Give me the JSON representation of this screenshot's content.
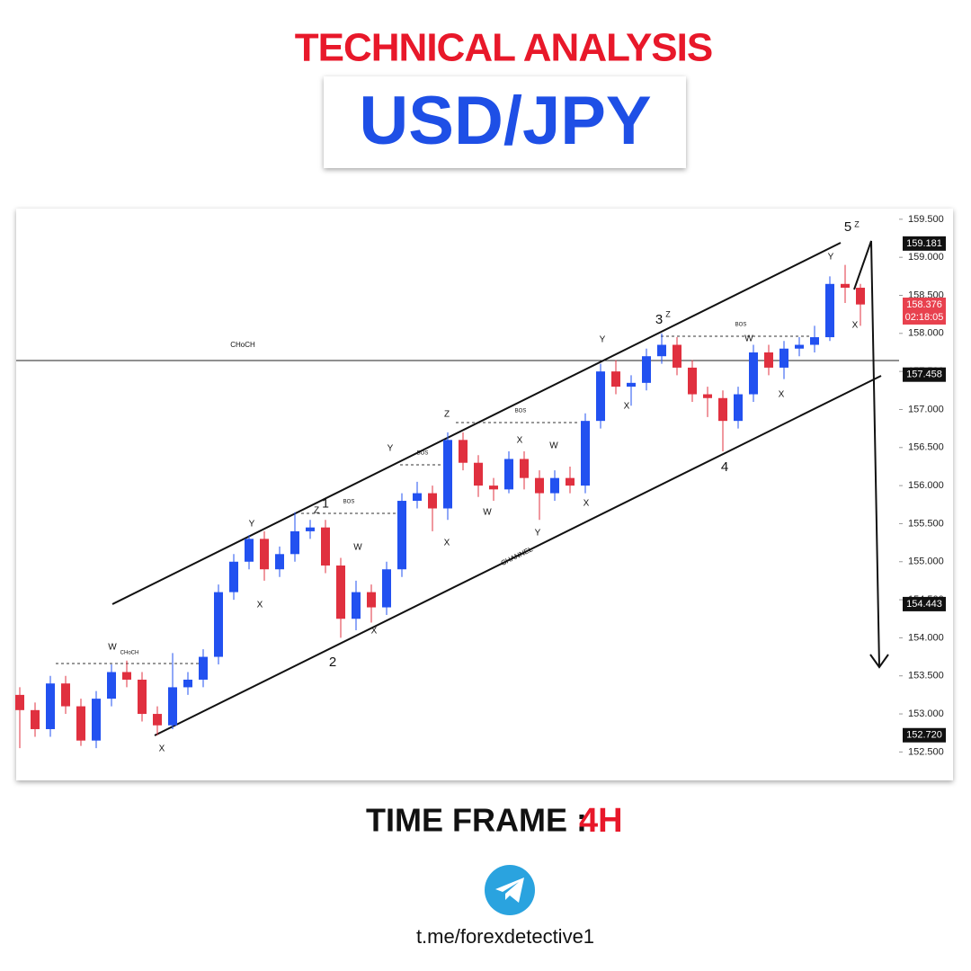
{
  "header": {
    "title": "TECHNICAL ANALYSIS",
    "pair": "USD/JPY"
  },
  "chart_data": {
    "type": "candlestick",
    "up_color": "#2251f0",
    "down_color": "#e0303f",
    "open": [
      153.25,
      153.05,
      152.8,
      153.4,
      153.1,
      152.65,
      153.2,
      153.55,
      153.45,
      153.0,
      152.85,
      153.35,
      153.45,
      153.75,
      154.6,
      155.0,
      155.3,
      154.9,
      155.1,
      155.4,
      155.45,
      154.95,
      154.25,
      154.6,
      154.4,
      154.9,
      155.8,
      155.9,
      155.7,
      156.6,
      156.3,
      156.0,
      155.95,
      156.35,
      156.1,
      155.9,
      156.1,
      156.0,
      156.85,
      157.5,
      157.3,
      157.35,
      157.7,
      157.85,
      157.55,
      157.2,
      157.15,
      156.85,
      157.2,
      157.75,
      157.55,
      157.8,
      157.85,
      157.95,
      158.65,
      158.6
    ],
    "high": [
      153.35,
      153.15,
      153.5,
      153.5,
      153.2,
      153.3,
      153.65,
      153.7,
      153.55,
      153.1,
      153.8,
      153.55,
      153.85,
      154.7,
      155.1,
      155.35,
      155.4,
      155.2,
      155.65,
      155.55,
      155.55,
      155.05,
      154.75,
      154.7,
      155.0,
      155.9,
      156.05,
      156.0,
      156.7,
      156.7,
      156.4,
      156.1,
      156.45,
      156.45,
      156.2,
      156.2,
      156.25,
      156.95,
      157.6,
      157.65,
      157.45,
      157.8,
      158.0,
      157.95,
      157.65,
      157.3,
      157.25,
      157.3,
      157.85,
      157.85,
      157.9,
      157.95,
      158.1,
      158.75,
      158.9,
      158.65
    ],
    "low": [
      152.55,
      152.7,
      152.7,
      153.0,
      152.58,
      152.55,
      153.1,
      153.35,
      152.9,
      152.72,
      152.8,
      153.25,
      153.35,
      153.65,
      154.5,
      154.9,
      154.75,
      154.8,
      155.0,
      155.3,
      154.85,
      154.0,
      154.1,
      154.2,
      154.3,
      154.8,
      155.7,
      155.4,
      155.55,
      156.2,
      155.85,
      155.8,
      155.9,
      155.95,
      155.55,
      155.8,
      155.9,
      155.9,
      156.75,
      157.2,
      157.05,
      157.25,
      157.6,
      157.45,
      157.1,
      156.9,
      156.45,
      156.75,
      157.1,
      157.45,
      157.4,
      157.7,
      157.75,
      157.9,
      158.4,
      158.1
    ],
    "close": [
      153.05,
      152.8,
      153.4,
      153.1,
      152.65,
      153.2,
      153.55,
      153.45,
      153.0,
      152.85,
      153.35,
      153.45,
      153.75,
      154.6,
      155.0,
      155.3,
      154.9,
      155.1,
      155.4,
      155.45,
      154.95,
      154.25,
      154.6,
      154.4,
      154.9,
      155.8,
      155.9,
      155.7,
      156.6,
      156.3,
      156.0,
      155.95,
      156.35,
      156.1,
      155.9,
      156.1,
      156.0,
      156.85,
      157.5,
      157.3,
      157.35,
      157.7,
      157.85,
      157.55,
      157.2,
      157.15,
      156.85,
      157.2,
      157.75,
      157.55,
      157.8,
      157.85,
      157.95,
      158.65,
      158.6,
      158.38
    ],
    "ylim": [
      152.15,
      159.64
    ],
    "yticks": [
      {
        "value": 152.5,
        "label": "152.500"
      },
      {
        "value": 153,
        "label": "153.000"
      },
      {
        "value": 153.5,
        "label": "153.500"
      },
      {
        "value": 154,
        "label": "154.000"
      },
      {
        "value": 154.5,
        "label": "154.500"
      },
      {
        "value": 155,
        "label": "155.000"
      },
      {
        "value": 155.5,
        "label": "155.500"
      },
      {
        "value": 156,
        "label": "156.000"
      },
      {
        "value": 156.5,
        "label": "156.500"
      },
      {
        "value": 157,
        "label": "157.000"
      },
      {
        "value": 157.5,
        "label": "157.500"
      },
      {
        "value": 158,
        "label": "158.000"
      },
      {
        "value": 158.5,
        "label": "158.500"
      },
      {
        "value": 159,
        "label": "159.000"
      },
      {
        "value": 159.5,
        "label": "159.500"
      }
    ],
    "price_labels": [
      {
        "value": 159.181,
        "label": "159.181"
      },
      {
        "value": 158.376,
        "label": "158.376",
        "countdown": "02:18:05"
      },
      {
        "value": 157.458,
        "label": "157.458"
      },
      {
        "value": 154.443,
        "label": "154.443"
      },
      {
        "value": 152.72,
        "label": "152.720"
      }
    ],
    "annotations": [
      "5",
      "Z",
      "Y",
      "X",
      "3",
      "Z",
      "BOS",
      "W",
      "Y",
      "CHoCH",
      "X",
      "X",
      "Z",
      "BOS",
      "4",
      "X",
      "W",
      "Y",
      "BOS",
      "W",
      "X",
      "1",
      "Z",
      "BOS",
      "Y",
      "X",
      "CHANNEL",
      "Y",
      "W",
      "X",
      "X",
      "W",
      "CHoCH",
      "2",
      "X"
    ]
  },
  "footer": {
    "time_frame_label": "TIME FRAME :",
    "time_frame": "4H",
    "link": "t.me/forexdetective1"
  }
}
